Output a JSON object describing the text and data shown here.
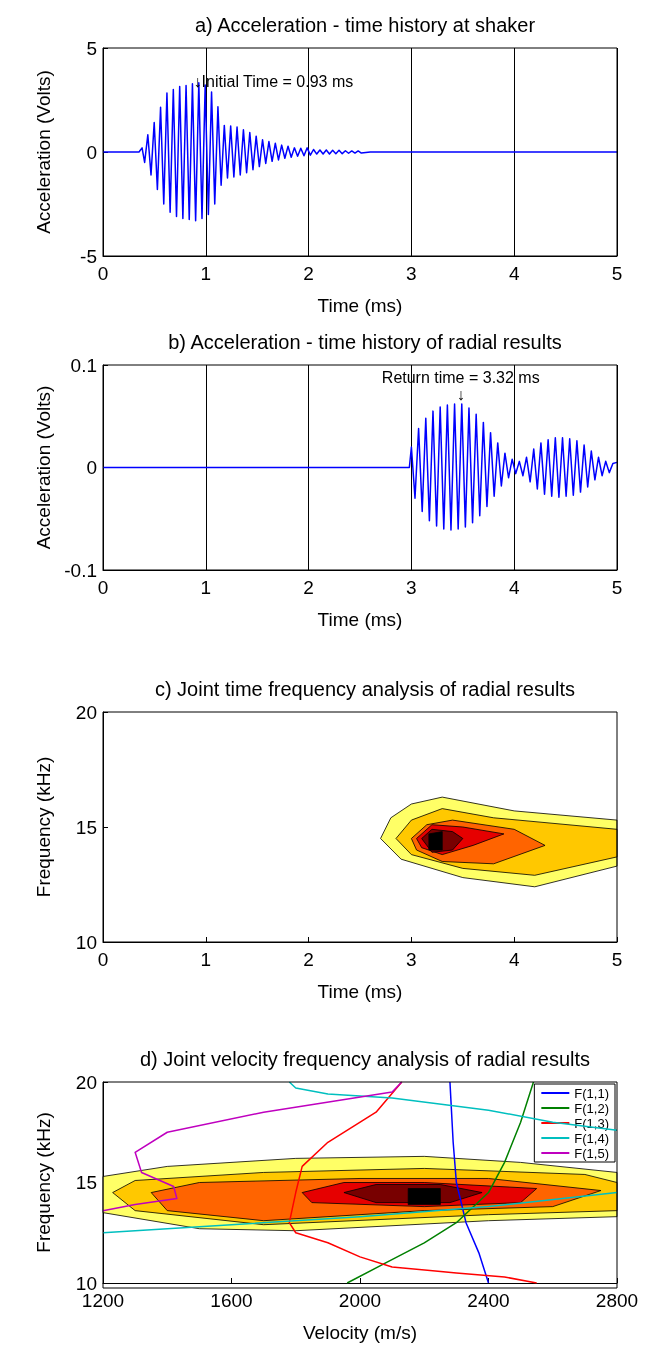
{
  "chart_data": [
    {
      "type": "line",
      "title": "a) Acceleration - time history at shaker",
      "xlabel": "Time (ms)",
      "ylabel": "Acceleration (Volts)",
      "xlim": [
        0,
        5
      ],
      "xticks": [
        0,
        1,
        2,
        3,
        4,
        5
      ],
      "ylim": [
        -5,
        5
      ],
      "yticks": [
        -5,
        0,
        5
      ],
      "grid": "x",
      "annotations": [
        {
          "text": "↓Initial Time = 0.93 ms",
          "x": 0.93,
          "y": 3.4
        }
      ],
      "series": [
        {
          "color": "#0000ff",
          "x": [
            0,
            0.35,
            0.38,
            0.405,
            0.436,
            0.467,
            0.498,
            0.529,
            0.56,
            0.591,
            0.622,
            0.653,
            0.684,
            0.715,
            0.746,
            0.777,
            0.808,
            0.839,
            0.87,
            0.901,
            0.932,
            0.963,
            0.994,
            1.025,
            1.056,
            1.087,
            1.118,
            1.149,
            1.18,
            1.211,
            1.242,
            1.273,
            1.304,
            1.335,
            1.366,
            1.397,
            1.428,
            1.459,
            1.49,
            1.521,
            1.552,
            1.583,
            1.614,
            1.645,
            1.676,
            1.707,
            1.738,
            1.769,
            1.8,
            1.831,
            1.862,
            1.893,
            1.924,
            1.955,
            1.986,
            2.017,
            2.048,
            2.079,
            2.11,
            2.141,
            2.172,
            2.203,
            2.234,
            2.265,
            2.296,
            2.327,
            2.358,
            2.389,
            2.42,
            2.451,
            2.482,
            2.513,
            2.6,
            5
          ],
          "values": [
            0,
            0,
            0.2,
            -0.5,
            0.83,
            -1.1,
            1.42,
            -1.8,
            2.15,
            -2.5,
            2.84,
            -2.9,
            3.0,
            -3.1,
            3.15,
            -3.2,
            3.2,
            -3.25,
            3.28,
            -3.3,
            3.33,
            -3.2,
            3.22,
            -3.0,
            2.88,
            -2.5,
            2.18,
            -1.6,
            1.28,
            -1.25,
            1.25,
            -1.2,
            1.2,
            -1.1,
            1.07,
            -1.0,
            0.94,
            -0.85,
            0.76,
            -0.7,
            0.59,
            -0.55,
            0.5,
            -0.45,
            0.42,
            -0.38,
            0.33,
            -0.3,
            0.28,
            -0.25,
            0.2,
            -0.2,
            0.18,
            -0.18,
            0.2,
            -0.15,
            0.12,
            -0.1,
            0.1,
            -0.1,
            0.1,
            -0.1,
            0.08,
            -0.08,
            0.08,
            -0.08,
            0.06,
            -0.06,
            0.05,
            -0.05,
            0.05,
            -0.05,
            0,
            0
          ]
        }
      ]
    },
    {
      "type": "line",
      "title": "b) Acceleration - time history of radial results",
      "xlabel": "Time (ms)",
      "ylabel": "Acceleration (Volts)",
      "xlim": [
        0,
        5
      ],
      "xticks": [
        0,
        1,
        2,
        3,
        4,
        5
      ],
      "ylim": [
        -0.1,
        0.1
      ],
      "yticks": [
        -0.1,
        0,
        0.1
      ],
      "grid": "x",
      "annotations": [
        {
          "text": "Return time = 3.32 ms\n↓",
          "x": 3.48,
          "y": 0.063
        }
      ],
      "series": [
        {
          "color": "#0000ff",
          "x": [
            0,
            2.98,
            3.0,
            3.035,
            3.07,
            3.105,
            3.14,
            3.175,
            3.21,
            3.245,
            3.28,
            3.315,
            3.35,
            3.385,
            3.42,
            3.455,
            3.49,
            3.525,
            3.56,
            3.595,
            3.63,
            3.665,
            3.7,
            3.735,
            3.77,
            3.805,
            3.84,
            3.875,
            3.91,
            3.945,
            3.98,
            4.015,
            4.05,
            4.085,
            4.12,
            4.155,
            4.19,
            4.225,
            4.26,
            4.295,
            4.33,
            4.365,
            4.4,
            4.435,
            4.47,
            4.505,
            4.54,
            4.575,
            4.61,
            4.645,
            4.68,
            4.715,
            4.75,
            4.785,
            4.82,
            4.855,
            4.89,
            4.925,
            4.96,
            5.0
          ],
          "values": [
            0,
            0,
            0.02,
            -0.03,
            0.038,
            -0.043,
            0.048,
            -0.052,
            0.055,
            -0.057,
            0.059,
            -0.06,
            0.061,
            -0.061,
            0.062,
            -0.06,
            0.062,
            -0.058,
            0.058,
            -0.054,
            0.052,
            -0.047,
            0.044,
            -0.038,
            0.034,
            -0.028,
            0.024,
            -0.018,
            0.014,
            -0.01,
            0.008,
            -0.006,
            0.006,
            -0.008,
            0.01,
            -0.014,
            0.018,
            -0.021,
            0.024,
            -0.026,
            0.027,
            -0.028,
            0.029,
            -0.029,
            0.029,
            -0.028,
            0.028,
            -0.027,
            0.026,
            -0.024,
            0.022,
            -0.019,
            0.016,
            -0.012,
            0.01,
            -0.008,
            0.006,
            -0.005,
            0.004,
            0.005
          ]
        }
      ]
    },
    {
      "type": "area",
      "title": "c) Joint time frequency analysis of radial results",
      "xlabel": "Time (ms)",
      "ylabel": "Frequency (kHz)",
      "xlim": [
        0,
        5
      ],
      "xticks": [
        0,
        1,
        2,
        3,
        4,
        5
      ],
      "ylim": [
        10,
        20
      ],
      "yticks": [
        10,
        15,
        20
      ],
      "grid": false,
      "series": [
        {
          "color": "#ffff66",
          "x": [
            2.7,
            2.8,
            3.0,
            3.3,
            4.0,
            5.0,
            5.0,
            4.2,
            3.5,
            2.9
          ],
          "values": [
            14.5,
            15.4,
            16.0,
            16.3,
            15.7,
            15.3,
            13.3,
            12.4,
            12.8,
            13.6
          ]
        },
        {
          "color": "#ffc800",
          "x": [
            2.85,
            3.0,
            3.3,
            3.8,
            5.0,
            5.0,
            4.2,
            3.5,
            3.0
          ],
          "values": [
            14.5,
            15.3,
            15.8,
            15.4,
            14.9,
            13.7,
            12.9,
            13.2,
            13.8
          ]
        },
        {
          "color": "#ff6400",
          "x": [
            3.0,
            3.15,
            3.4,
            4.0,
            4.3,
            3.8,
            3.3,
            3.05
          ],
          "values": [
            14.5,
            15.1,
            15.3,
            14.9,
            14.2,
            13.4,
            13.5,
            14.0
          ]
        },
        {
          "color": "#e60000",
          "x": [
            3.05,
            3.2,
            3.5,
            3.9,
            3.6,
            3.3,
            3.1
          ],
          "values": [
            14.5,
            15.1,
            15.0,
            14.7,
            14.2,
            13.8,
            14.1
          ]
        },
        {
          "color": "#780000",
          "x": [
            3.1,
            3.2,
            3.4,
            3.5,
            3.4,
            3.2
          ],
          "values": [
            14.5,
            14.9,
            14.8,
            14.5,
            14.0,
            13.9
          ]
        },
        {
          "color": "#000000",
          "x": [
            3.17,
            3.17,
            3.3,
            3.3
          ],
          "values": [
            14.0,
            14.7,
            14.8,
            14.0
          ]
        }
      ]
    },
    {
      "type": "line",
      "title": "d) Joint velocity frequency analysis of radial results",
      "xlabel": "Velocity (m/s)",
      "ylabel": "Frequency (kHz)",
      "xlim": [
        1200,
        2800
      ],
      "xticks": [
        1200,
        1600,
        2000,
        2400,
        2800
      ],
      "ylim": [
        10,
        20
      ],
      "yticks": [
        10,
        15,
        20
      ],
      "grid": false,
      "legend": "top right",
      "series": [
        {
          "type": "area",
          "color": "#ffff66",
          "x": [
            1200,
            1400,
            1800,
            2200,
            2500,
            2800,
            2800,
            2400,
            1800,
            1500,
            1200
          ],
          "values": [
            15.3,
            15.8,
            16.2,
            16.3,
            16.0,
            15.5,
            13.3,
            13.1,
            12.6,
            12.7,
            13.5
          ]
        },
        {
          "type": "area",
          "color": "#ffc800",
          "x": [
            1230,
            1300,
            1700,
            2200,
            2700,
            2800,
            2800,
            2400,
            1700,
            1300
          ],
          "values": [
            14.5,
            15.1,
            15.5,
            15.7,
            15.4,
            15.0,
            13.6,
            13.4,
            12.9,
            13.6
          ]
        },
        {
          "type": "area",
          "color": "#ff6400",
          "x": [
            1350,
            1500,
            2000,
            2400,
            2750,
            2600,
            2200,
            1700,
            1400
          ],
          "values": [
            14.5,
            15.0,
            15.2,
            15.2,
            14.6,
            13.8,
            13.6,
            13.1,
            13.6
          ]
        },
        {
          "type": "area",
          "color": "#e60000",
          "x": [
            1820,
            1950,
            2200,
            2550,
            2500,
            2200,
            1850
          ],
          "values": [
            14.5,
            15.0,
            15.0,
            14.7,
            14.0,
            13.8,
            14.0
          ]
        },
        {
          "type": "area",
          "color": "#780000",
          "x": [
            1950,
            2050,
            2250,
            2380,
            2280,
            2050
          ],
          "values": [
            14.5,
            14.9,
            14.9,
            14.5,
            14.0,
            14.0
          ]
        },
        {
          "type": "area",
          "color": "#000000",
          "x": [
            2150,
            2150,
            2250,
            2250
          ],
          "values": [
            13.9,
            14.7,
            14.7,
            13.9
          ]
        },
        {
          "name": "F(1,1)",
          "color": "#0000ff",
          "x": [
            2280,
            2290,
            2300,
            2330,
            2370,
            2400
          ],
          "values": [
            20,
            17,
            15,
            13,
            11.5,
            10
          ]
        },
        {
          "name": "F(1,2)",
          "color": "#008000",
          "x": [
            1960,
            2080,
            2200,
            2300,
            2400,
            2450,
            2500,
            2540
          ],
          "values": [
            10,
            11,
            12,
            13,
            14.5,
            16,
            18,
            20
          ]
        },
        {
          "name": "F(1,3)",
          "color": "#ff0000",
          "x": [
            2130,
            2050,
            1900,
            1820,
            1800,
            1780,
            1800,
            1900,
            2000,
            2100,
            2300,
            2450,
            2550
          ],
          "values": [
            20,
            18.5,
            17,
            15.8,
            14.5,
            13,
            12.5,
            12,
            11.3,
            10.8,
            10.5,
            10.3,
            10
          ]
        },
        {
          "name": "F(1,4)",
          "color": "#00bfbf",
          "x": [
            1780,
            1800,
            1900,
            2100,
            2400,
            2600,
            2800,
            null,
            1200,
            1600,
            2000,
            2400,
            2800
          ],
          "values": [
            20,
            19.7,
            19.4,
            19.2,
            18.6,
            18.0,
            17.6,
            null,
            12.5,
            12.9,
            13.3,
            13.8,
            14.5
          ]
        },
        {
          "name": "F(1,5)",
          "color": "#bf00bf",
          "x": [
            2130,
            2100,
            1700,
            1400,
            1300,
            1320,
            1420,
            1430,
            1300,
            1200
          ],
          "values": [
            20,
            19.5,
            18.5,
            17.5,
            16.5,
            15.5,
            14.8,
            14.2,
            13.9,
            13.6
          ]
        }
      ]
    }
  ]
}
